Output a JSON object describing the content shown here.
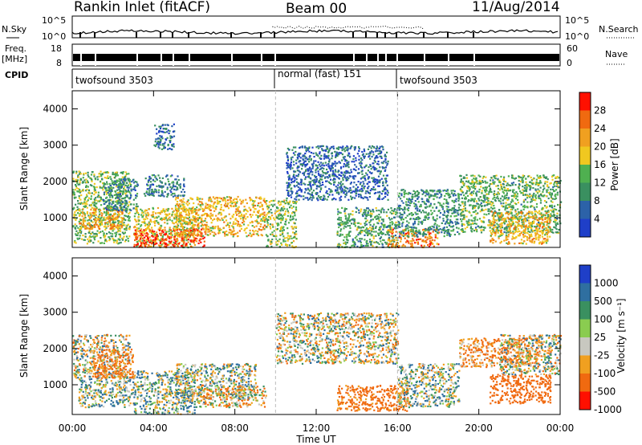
{
  "header": {
    "station_title": "Rankin Inlet (fitACF)",
    "beam_title": "Beam 00",
    "date_title": "11/Aug/2014"
  },
  "noise_panel": {
    "left_label": "N.Sky",
    "left_ticks": [
      "10^5",
      "10^0"
    ],
    "right_label": "N.Search",
    "right_ticks": [
      "10^5",
      "10^0"
    ]
  },
  "freq_panel": {
    "left_label_1": "Freq.",
    "left_label_2": "[MHz]",
    "left_ticks": [
      "18",
      "8"
    ],
    "right_label": "Nave",
    "right_ticks": [
      "60",
      "0"
    ]
  },
  "cpid_panel": {
    "label": "CPID",
    "segments": [
      {
        "name": "twofsound 3503",
        "start": 0,
        "end": 10
      },
      {
        "name": "normal (fast) 151",
        "start": 10,
        "end": 16
      },
      {
        "name": "twofsound 3503",
        "start": 16,
        "end": 24
      }
    ]
  },
  "time_axis": {
    "label": "Time UT",
    "ticks": [
      "00:00",
      "04:00",
      "08:00",
      "12:00",
      "16:00",
      "20:00",
      "00:00"
    ]
  },
  "power_panel": {
    "ylabel": "Slant Range [km]",
    "yticks": [
      "1000",
      "2000",
      "3000",
      "4000"
    ],
    "colorbar_label": "Power [dB]",
    "colorbar_ticks": [
      "4",
      "8",
      "12",
      "16",
      "20",
      "24",
      "28"
    ]
  },
  "velocity_panel": {
    "ylabel": "Slant Range [km]",
    "yticks": [
      "1000",
      "2000",
      "3000",
      "4000"
    ],
    "colorbar_label": "Velocity [m s⁻¹]",
    "colorbar_ticks": [
      "1000",
      "500",
      "100",
      "25",
      "-25",
      "-100",
      "-500",
      "-1000"
    ]
  },
  "chart_data": {
    "type": "heatmap",
    "x_range_hours": [
      0,
      24
    ],
    "y_range_km": [
      180,
      4500
    ],
    "power_colors": [
      "#1f3fc8",
      "#2c62a8",
      "#3a9060",
      "#4fb050",
      "#f0c820",
      "#f0a020",
      "#f06a10",
      "#ff1000"
    ],
    "velocity_colors": [
      "#1f3fc8",
      "#2f6fa0",
      "#3a9060",
      "#8acc50",
      "#c8c8c0",
      "#f0a020",
      "#f06a10",
      "#ff1000"
    ],
    "power_regions": [
      {
        "t": [
          0,
          2.8
        ],
        "r": [
          300,
          2300
        ],
        "db": 14
      },
      {
        "t": [
          0.3,
          2.5
        ],
        "r": [
          700,
          1300
        ],
        "db": 22
      },
      {
        "t": [
          1.5,
          3.2
        ],
        "r": [
          1200,
          2100
        ],
        "db": 9
      },
      {
        "t": [
          3,
          6
        ],
        "r": [
          200,
          1300
        ],
        "db": 18
      },
      {
        "t": [
          3,
          6.5
        ],
        "r": [
          200,
          700
        ],
        "db": 28
      },
      {
        "t": [
          5,
          9.5
        ],
        "r": [
          500,
          1600
        ],
        "db": 20
      },
      {
        "t": [
          3.5,
          5.5
        ],
        "r": [
          1600,
          2200
        ],
        "db": 8
      },
      {
        "t": [
          4,
          5
        ],
        "r": [
          2900,
          3600
        ],
        "db": 6
      },
      {
        "t": [
          9.5,
          11
        ],
        "r": [
          200,
          1500
        ],
        "db": 15
      },
      {
        "t": [
          10.5,
          15.5
        ],
        "r": [
          1500,
          3000
        ],
        "db": 6
      },
      {
        "t": [
          13,
          16
        ],
        "r": [
          200,
          1300
        ],
        "db": 12
      },
      {
        "t": [
          15.5,
          18
        ],
        "r": [
          200,
          700
        ],
        "db": 24
      },
      {
        "t": [
          16,
          19
        ],
        "r": [
          500,
          1800
        ],
        "db": 10
      },
      {
        "t": [
          19,
          24
        ],
        "r": [
          600,
          2200
        ],
        "db": 13
      },
      {
        "t": [
          20.5,
          23.5
        ],
        "r": [
          300,
          1200
        ],
        "db": 20
      }
    ],
    "velocity_regions": [
      {
        "t": [
          0,
          2.8
        ],
        "r": [
          1200,
          2400
        ],
        "v": 0
      },
      {
        "t": [
          0.3,
          3
        ],
        "r": [
          400,
          1200
        ],
        "v": 50
      },
      {
        "t": [
          1,
          3
        ],
        "r": [
          1200,
          2000
        ],
        "v": -150
      },
      {
        "t": [
          3,
          6
        ],
        "r": [
          200,
          1400
        ],
        "v": 60
      },
      {
        "t": [
          5,
          9
        ],
        "r": [
          600,
          1600
        ],
        "v": 30
      },
      {
        "t": [
          6,
          9.5
        ],
        "r": [
          400,
          1000
        ],
        "v": -40
      },
      {
        "t": [
          10,
          16
        ],
        "r": [
          1600,
          3000
        ],
        "v": 0
      },
      {
        "t": [
          13,
          16.5
        ],
        "r": [
          300,
          1000
        ],
        "v": -200
      },
      {
        "t": [
          16,
          19
        ],
        "r": [
          400,
          1600
        ],
        "v": 40
      },
      {
        "t": [
          19,
          23
        ],
        "r": [
          1500,
          2300
        ],
        "v": -120
      },
      {
        "t": [
          20.5,
          23.5
        ],
        "r": [
          500,
          1300
        ],
        "v": -300
      },
      {
        "t": [
          21,
          24
        ],
        "r": [
          1300,
          2400
        ],
        "v": 0
      }
    ]
  }
}
